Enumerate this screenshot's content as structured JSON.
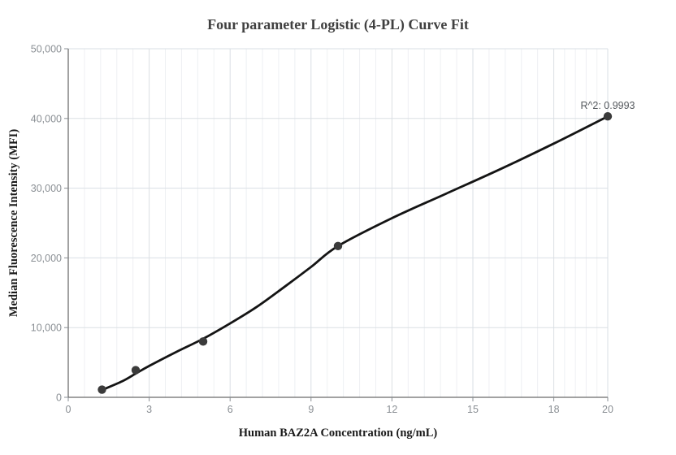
{
  "chart_data": {
    "type": "scatter",
    "title": "Four parameter Logistic (4-PL) Curve Fit",
    "xlabel": "Human BAZ2A Concentration (ng/mL)",
    "ylabel": "Median Fluorescence Intensity (MFI)",
    "annotation": "R^2: 0.9993",
    "xlim": [
      0,
      20
    ],
    "ylim": [
      0,
      50000
    ],
    "x_ticks": [
      0,
      3,
      6,
      9,
      12,
      15,
      18,
      20
    ],
    "y_ticks": [
      0,
      10000,
      20000,
      30000,
      40000,
      50000
    ],
    "grid": true,
    "minor_x_divisions": 5,
    "legend": "none",
    "points": [
      {
        "x": 1.25,
        "y": 1100
      },
      {
        "x": 2.5,
        "y": 3900
      },
      {
        "x": 5,
        "y": 8000
      },
      {
        "x": 10,
        "y": 21700
      },
      {
        "x": 20,
        "y": 40300
      }
    ],
    "fit_curve": [
      [
        1.25,
        1050
      ],
      [
        2,
        2300
      ],
      [
        2.5,
        3400
      ],
      [
        3,
        4500
      ],
      [
        4,
        6500
      ],
      [
        5,
        8400
      ],
      [
        6,
        10600
      ],
      [
        7,
        13000
      ],
      [
        8,
        15800
      ],
      [
        9,
        18700
      ],
      [
        10,
        21700
      ],
      [
        12,
        25700
      ],
      [
        14,
        29200
      ],
      [
        16,
        32700
      ],
      [
        18,
        36400
      ],
      [
        20,
        40300
      ]
    ],
    "colors": {
      "point": "#3b3b3b",
      "curve": "#141414",
      "grid_major": "#dadfe4",
      "grid_minor": "#eef0f3",
      "axis": "#454545",
      "tick": "#8a8f94"
    }
  }
}
